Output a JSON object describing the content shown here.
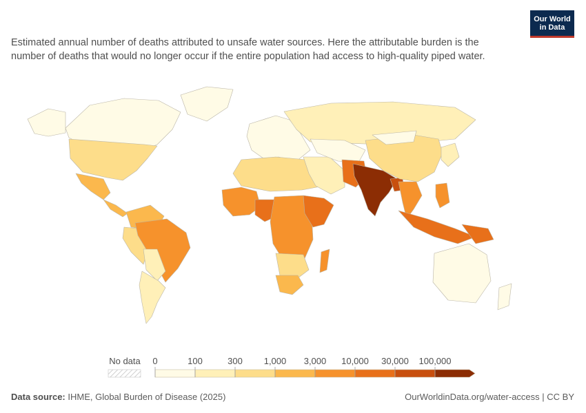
{
  "subtitle": "Estimated annual number of deaths attributed to unsafe water sources. Here the attributable burden is the number of deaths that would no longer occur if the entire population had access to high-quality piped water.",
  "logo": {
    "line1": "Our World",
    "line2": "in Data"
  },
  "legend": {
    "no_data_label": "No data",
    "bins": [
      "0",
      "100",
      "300",
      "1,000",
      "3,000",
      "10,000",
      "30,000",
      "100,000"
    ],
    "colors": [
      "#fffbe6",
      "#fff0b8",
      "#fddd8a",
      "#fbb84d",
      "#f6922c",
      "#e8701a",
      "#c84f0e",
      "#8c2d04"
    ],
    "no_data_color": "#e6e6e6"
  },
  "footer": {
    "source_label": "Data source:",
    "source_text": "IHME, Global Burden of Disease (2025)",
    "link_text": "OurWorldinData.org/water-access | CC BY"
  },
  "map_regions": [
    {
      "name": "Canada",
      "bin": 0
    },
    {
      "name": "Alaska",
      "bin": 0
    },
    {
      "name": "Greenland",
      "bin": 0
    },
    {
      "name": "United States",
      "bin": 2
    },
    {
      "name": "Mexico",
      "bin": 3
    },
    {
      "name": "Central America",
      "bin": 3
    },
    {
      "name": "Colombia / Venezuela",
      "bin": 3
    },
    {
      "name": "Ecuador / Peru",
      "bin": 2
    },
    {
      "name": "Brazil",
      "bin": 4
    },
    {
      "name": "Bolivia / Paraguay",
      "bin": 1
    },
    {
      "name": "Argentina / Chile",
      "bin": 1
    },
    {
      "name": "Europe",
      "bin": 0
    },
    {
      "name": "Russia",
      "bin": 1
    },
    {
      "name": "North Africa",
      "bin": 2
    },
    {
      "name": "West Africa",
      "bin": 4
    },
    {
      "name": "Nigeria",
      "bin": 5
    },
    {
      "name": "Central Africa",
      "bin": 4
    },
    {
      "name": "Ethiopia / Horn",
      "bin": 5
    },
    {
      "name": "Southern Africa",
      "bin": 2
    },
    {
      "name": "South Africa",
      "bin": 3
    },
    {
      "name": "Madagascar",
      "bin": 4
    },
    {
      "name": "Middle East",
      "bin": 1
    },
    {
      "name": "Central Asia",
      "bin": 0
    },
    {
      "name": "Pakistan / Afghanistan",
      "bin": 5
    },
    {
      "name": "India",
      "bin": 7
    },
    {
      "name": "Bangladesh",
      "bin": 6
    },
    {
      "name": "China",
      "bin": 2
    },
    {
      "name": "Mongolia",
      "bin": 0
    },
    {
      "name": "Japan / Korea",
      "bin": 1
    },
    {
      "name": "Southeast Asia",
      "bin": 4
    },
    {
      "name": "Philippines",
      "bin": 4
    },
    {
      "name": "Indonesia",
      "bin": 5
    },
    {
      "name": "Papua New Guinea",
      "bin": 5
    },
    {
      "name": "Australia",
      "bin": 0
    },
    {
      "name": "New Zealand",
      "bin": 0
    }
  ]
}
